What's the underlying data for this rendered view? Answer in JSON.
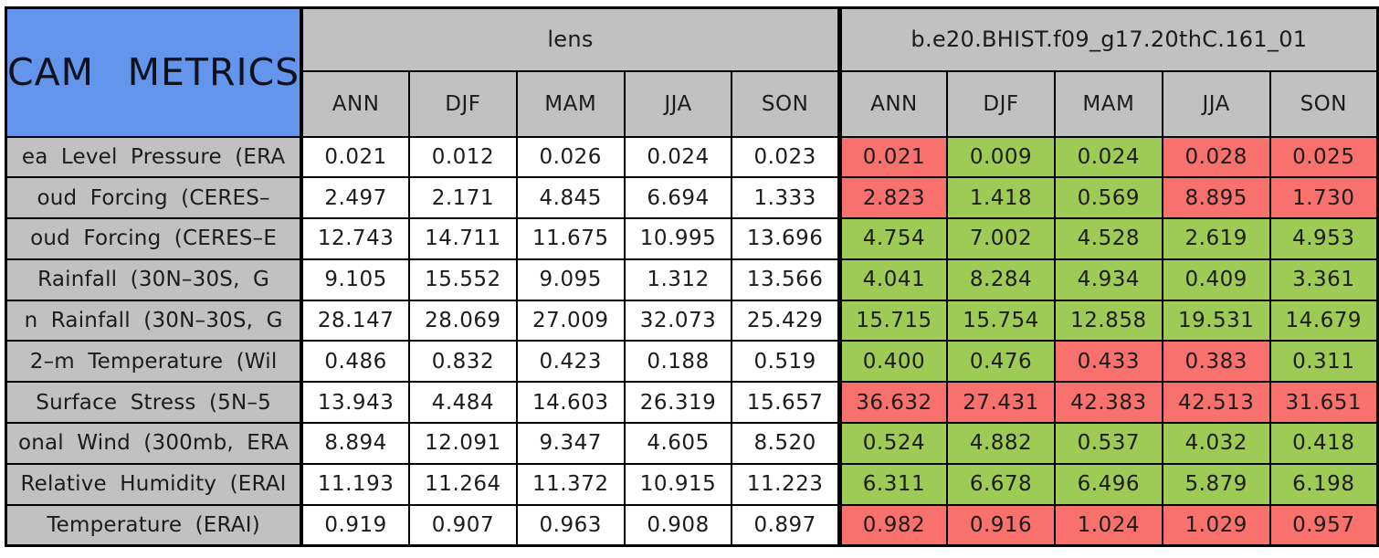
{
  "colors": {
    "title_bg": "#6495ed",
    "header_bg": "#c1c1c1",
    "plain_cell_bg": "#ffffff",
    "better_cell_bg": "#9ecb55",
    "worse_cell_bg": "#f8716c",
    "border": "#000000",
    "text": "#1c1c1c"
  },
  "chart_data": {
    "type": "table",
    "title": "CAM METRICS",
    "column_groups": [
      "lens",
      "b.e20.BHIST.f09_g17.20thC.161_01"
    ],
    "season_columns": [
      "ANN",
      "DJF",
      "MAM",
      "JJA",
      "SON"
    ],
    "status_legend": {
      "better": "green",
      "worse": "red"
    },
    "rows": [
      {
        "label": "ea Level Pressure (ERA",
        "lens": [
          "0.021",
          "0.012",
          "0.026",
          "0.024",
          "0.023"
        ],
        "model": [
          "0.021",
          "0.009",
          "0.024",
          "0.028",
          "0.025"
        ],
        "model_status": [
          "worse",
          "better",
          "better",
          "worse",
          "worse"
        ]
      },
      {
        "label": "oud Forcing (CERES–",
        "lens": [
          "2.497",
          "2.171",
          "4.845",
          "6.694",
          "1.333"
        ],
        "model": [
          "2.823",
          "1.418",
          "0.569",
          "8.895",
          "1.730"
        ],
        "model_status": [
          "worse",
          "better",
          "better",
          "worse",
          "worse"
        ]
      },
      {
        "label": "oud Forcing (CERES–E",
        "lens": [
          "12.743",
          "14.711",
          "11.675",
          "10.995",
          "13.696"
        ],
        "model": [
          "4.754",
          "7.002",
          "4.528",
          "2.619",
          "4.953"
        ],
        "model_status": [
          "better",
          "better",
          "better",
          "better",
          "better"
        ]
      },
      {
        "label": "Rainfall (30N–30S, G",
        "lens": [
          "9.105",
          "15.552",
          "9.095",
          "1.312",
          "13.566"
        ],
        "model": [
          "4.041",
          "8.284",
          "4.934",
          "0.409",
          "3.361"
        ],
        "model_status": [
          "better",
          "better",
          "better",
          "better",
          "better"
        ]
      },
      {
        "label": "n Rainfall (30N–30S, G",
        "lens": [
          "28.147",
          "28.069",
          "27.009",
          "32.073",
          "25.429"
        ],
        "model": [
          "15.715",
          "15.754",
          "12.858",
          "19.531",
          "14.679"
        ],
        "model_status": [
          "better",
          "better",
          "better",
          "better",
          "better"
        ]
      },
      {
        "label": "2–m Temperature (Wil",
        "lens": [
          "0.486",
          "0.832",
          "0.423",
          "0.188",
          "0.519"
        ],
        "model": [
          "0.400",
          "0.476",
          "0.433",
          "0.383",
          "0.311"
        ],
        "model_status": [
          "better",
          "better",
          "worse",
          "worse",
          "better"
        ]
      },
      {
        "label": "Surface Stress (5N–5",
        "lens": [
          "13.943",
          "4.484",
          "14.603",
          "26.319",
          "15.657"
        ],
        "model": [
          "36.632",
          "27.431",
          "42.383",
          "42.513",
          "31.651"
        ],
        "model_status": [
          "worse",
          "worse",
          "worse",
          "worse",
          "worse"
        ]
      },
      {
        "label": "onal Wind (300mb, ERA",
        "lens": [
          "8.894",
          "12.091",
          "9.347",
          "4.605",
          "8.520"
        ],
        "model": [
          "0.524",
          "4.882",
          "0.537",
          "4.032",
          "0.418"
        ],
        "model_status": [
          "better",
          "better",
          "better",
          "better",
          "better"
        ]
      },
      {
        "label": "Relative Humidity (ERAI",
        "lens": [
          "11.193",
          "11.264",
          "11.372",
          "10.915",
          "11.223"
        ],
        "model": [
          "6.311",
          "6.678",
          "6.496",
          "5.879",
          "6.198"
        ],
        "model_status": [
          "better",
          "better",
          "better",
          "better",
          "better"
        ]
      },
      {
        "label": "Temperature (ERAI)",
        "lens": [
          "0.919",
          "0.907",
          "0.963",
          "0.908",
          "0.897"
        ],
        "model": [
          "0.982",
          "0.916",
          "1.024",
          "1.029",
          "0.957"
        ],
        "model_status": [
          "worse",
          "worse",
          "worse",
          "worse",
          "worse"
        ]
      }
    ]
  }
}
